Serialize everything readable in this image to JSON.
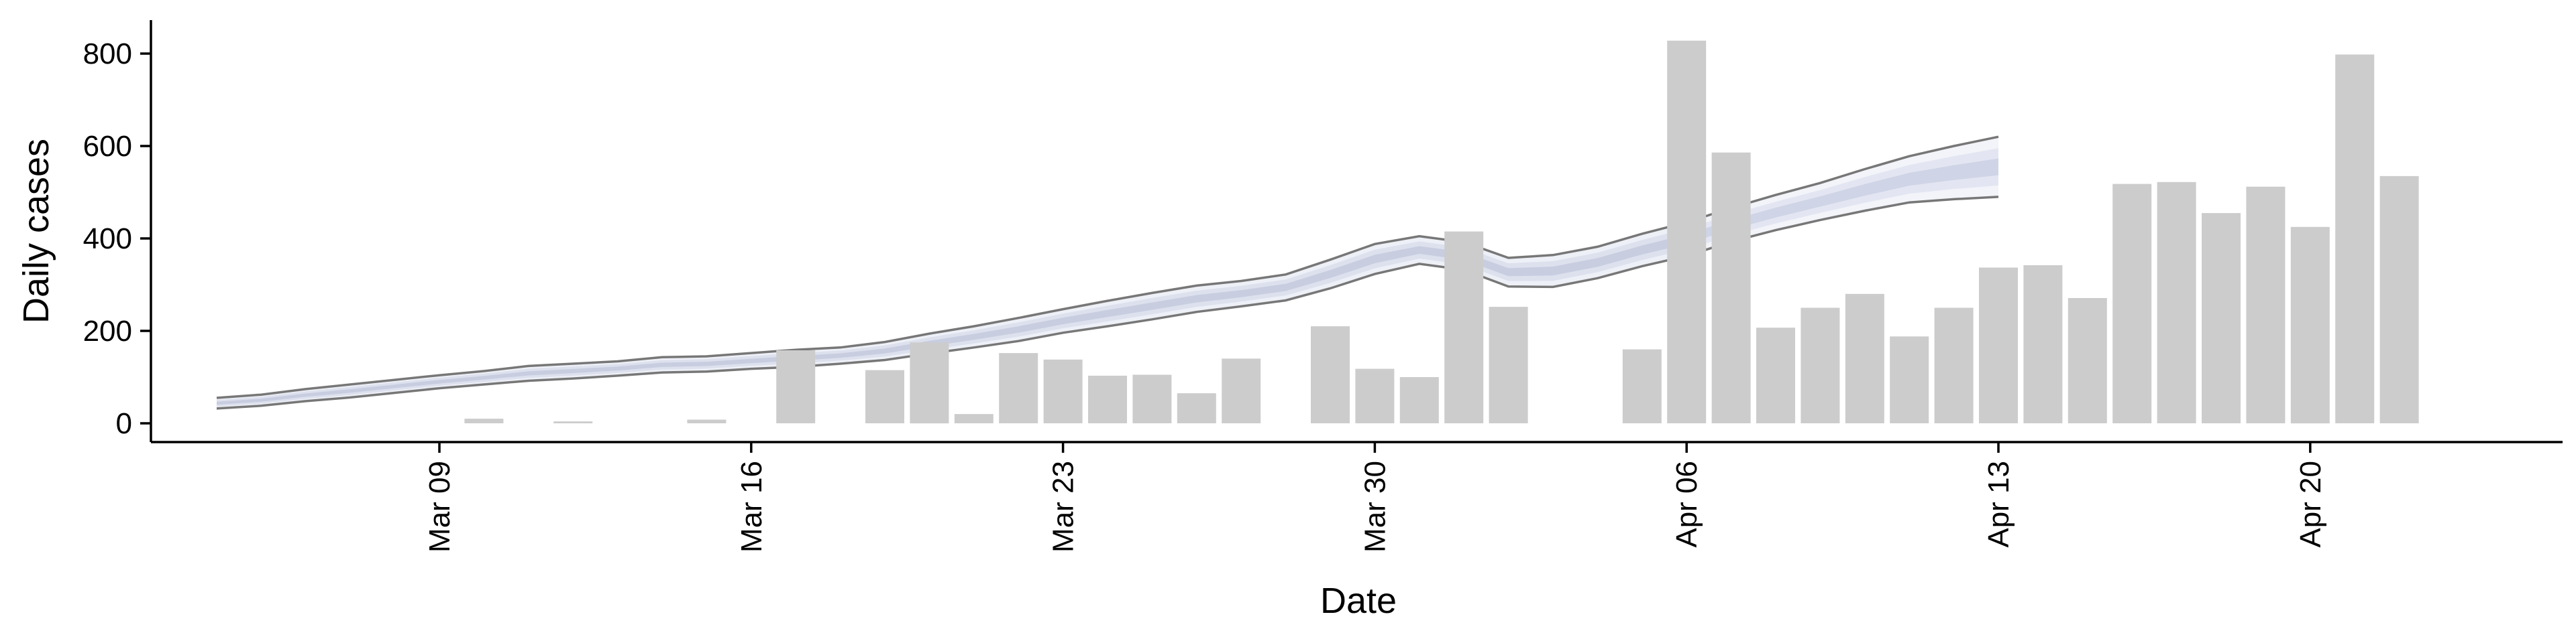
{
  "chart_data": {
    "type": "bar",
    "xlabel": "Date",
    "ylabel": "Daily cases",
    "ylim": [
      0,
      800
    ],
    "yticks": [
      0,
      200,
      400,
      600,
      800
    ],
    "xticks": [
      {
        "date": "2020-03-09",
        "label": "Mar 09"
      },
      {
        "date": "2020-03-16",
        "label": "Mar 16"
      },
      {
        "date": "2020-03-23",
        "label": "Mar 23"
      },
      {
        "date": "2020-03-30",
        "label": "Mar 30"
      },
      {
        "date": "2020-04-06",
        "label": "Apr 06"
      },
      {
        "date": "2020-04-13",
        "label": "Apr 13"
      },
      {
        "date": "2020-04-20",
        "label": "Apr 20"
      }
    ],
    "x_range": [
      "2020-03-02",
      "2020-04-26"
    ],
    "colors": {
      "bars": "#cccccc",
      "band_outer": "#eef0f7",
      "band_inner": "#dde1ee",
      "band_core": "#c8cde0",
      "band_edge": "#777777",
      "band_edge_forecast": "#aaaaaa"
    },
    "bars": [
      {
        "date": "2020-03-10",
        "value": 10
      },
      {
        "date": "2020-03-12",
        "value": 4
      },
      {
        "date": "2020-03-15",
        "value": 8
      },
      {
        "date": "2020-03-17",
        "value": 158
      },
      {
        "date": "2020-03-19",
        "value": 115
      },
      {
        "date": "2020-03-20",
        "value": 175
      },
      {
        "date": "2020-03-21",
        "value": 20
      },
      {
        "date": "2020-03-22",
        "value": 152
      },
      {
        "date": "2020-03-23",
        "value": 138
      },
      {
        "date": "2020-03-24",
        "value": 103
      },
      {
        "date": "2020-03-25",
        "value": 105
      },
      {
        "date": "2020-03-26",
        "value": 65
      },
      {
        "date": "2020-03-27",
        "value": 140
      },
      {
        "date": "2020-03-29",
        "value": 210
      },
      {
        "date": "2020-03-30",
        "value": 118
      },
      {
        "date": "2020-03-31",
        "value": 100
      },
      {
        "date": "2020-04-01",
        "value": 415
      },
      {
        "date": "2020-04-02",
        "value": 252
      },
      {
        "date": "2020-04-05",
        "value": 160
      },
      {
        "date": "2020-04-06",
        "value": 828
      },
      {
        "date": "2020-04-07",
        "value": 586
      },
      {
        "date": "2020-04-08",
        "value": 207
      },
      {
        "date": "2020-04-09",
        "value": 250
      },
      {
        "date": "2020-04-10",
        "value": 280
      },
      {
        "date": "2020-04-11",
        "value": 188
      },
      {
        "date": "2020-04-12",
        "value": 250
      },
      {
        "date": "2020-04-13",
        "value": 337
      },
      {
        "date": "2020-04-14",
        "value": 342
      },
      {
        "date": "2020-04-15",
        "value": 271
      },
      {
        "date": "2020-04-16",
        "value": 518
      },
      {
        "date": "2020-04-17",
        "value": 522
      },
      {
        "date": "2020-04-18",
        "value": 455
      },
      {
        "date": "2020-04-19",
        "value": 512
      },
      {
        "date": "2020-04-20",
        "value": 425
      },
      {
        "date": "2020-04-21",
        "value": 798
      },
      {
        "date": "2020-04-22",
        "value": 535
      }
    ],
    "estimate_band": {
      "dates": [
        "2020-03-04",
        "2020-03-05",
        "2020-03-06",
        "2020-03-07",
        "2020-03-08",
        "2020-03-09",
        "2020-03-10",
        "2020-03-11",
        "2020-03-12",
        "2020-03-13",
        "2020-03-14",
        "2020-03-15",
        "2020-03-16",
        "2020-03-17",
        "2020-03-18",
        "2020-03-19",
        "2020-03-20",
        "2020-03-21",
        "2020-03-22",
        "2020-03-23",
        "2020-03-24",
        "2020-03-25",
        "2020-03-26",
        "2020-03-27",
        "2020-03-28",
        "2020-03-29",
        "2020-03-30",
        "2020-03-31",
        "2020-04-01",
        "2020-04-02",
        "2020-04-03",
        "2020-04-04",
        "2020-04-05",
        "2020-04-06",
        "2020-04-07",
        "2020-04-08",
        "2020-04-09",
        "2020-04-10",
        "2020-04-11",
        "2020-04-12",
        "2020-04-13"
      ],
      "upper": [
        55,
        62,
        74,
        84,
        94,
        104,
        113,
        124,
        129,
        134,
        143,
        145,
        152,
        159,
        164,
        176,
        194,
        210,
        228,
        247,
        265,
        282,
        298,
        308,
        322,
        354,
        388,
        405,
        392,
        358,
        364,
        382,
        410,
        435,
        466,
        494,
        520,
        550,
        578,
        600,
        620
      ],
      "lower": [
        32,
        38,
        48,
        56,
        66,
        76,
        84,
        92,
        97,
        103,
        110,
        112,
        118,
        122,
        129,
        137,
        151,
        164,
        178,
        196,
        210,
        225,
        241,
        253,
        266,
        292,
        323,
        345,
        332,
        296,
        295,
        314,
        340,
        362,
        393,
        418,
        440,
        460,
        478,
        485,
        490
      ],
      "forecast_from": "2020-04-06"
    }
  }
}
